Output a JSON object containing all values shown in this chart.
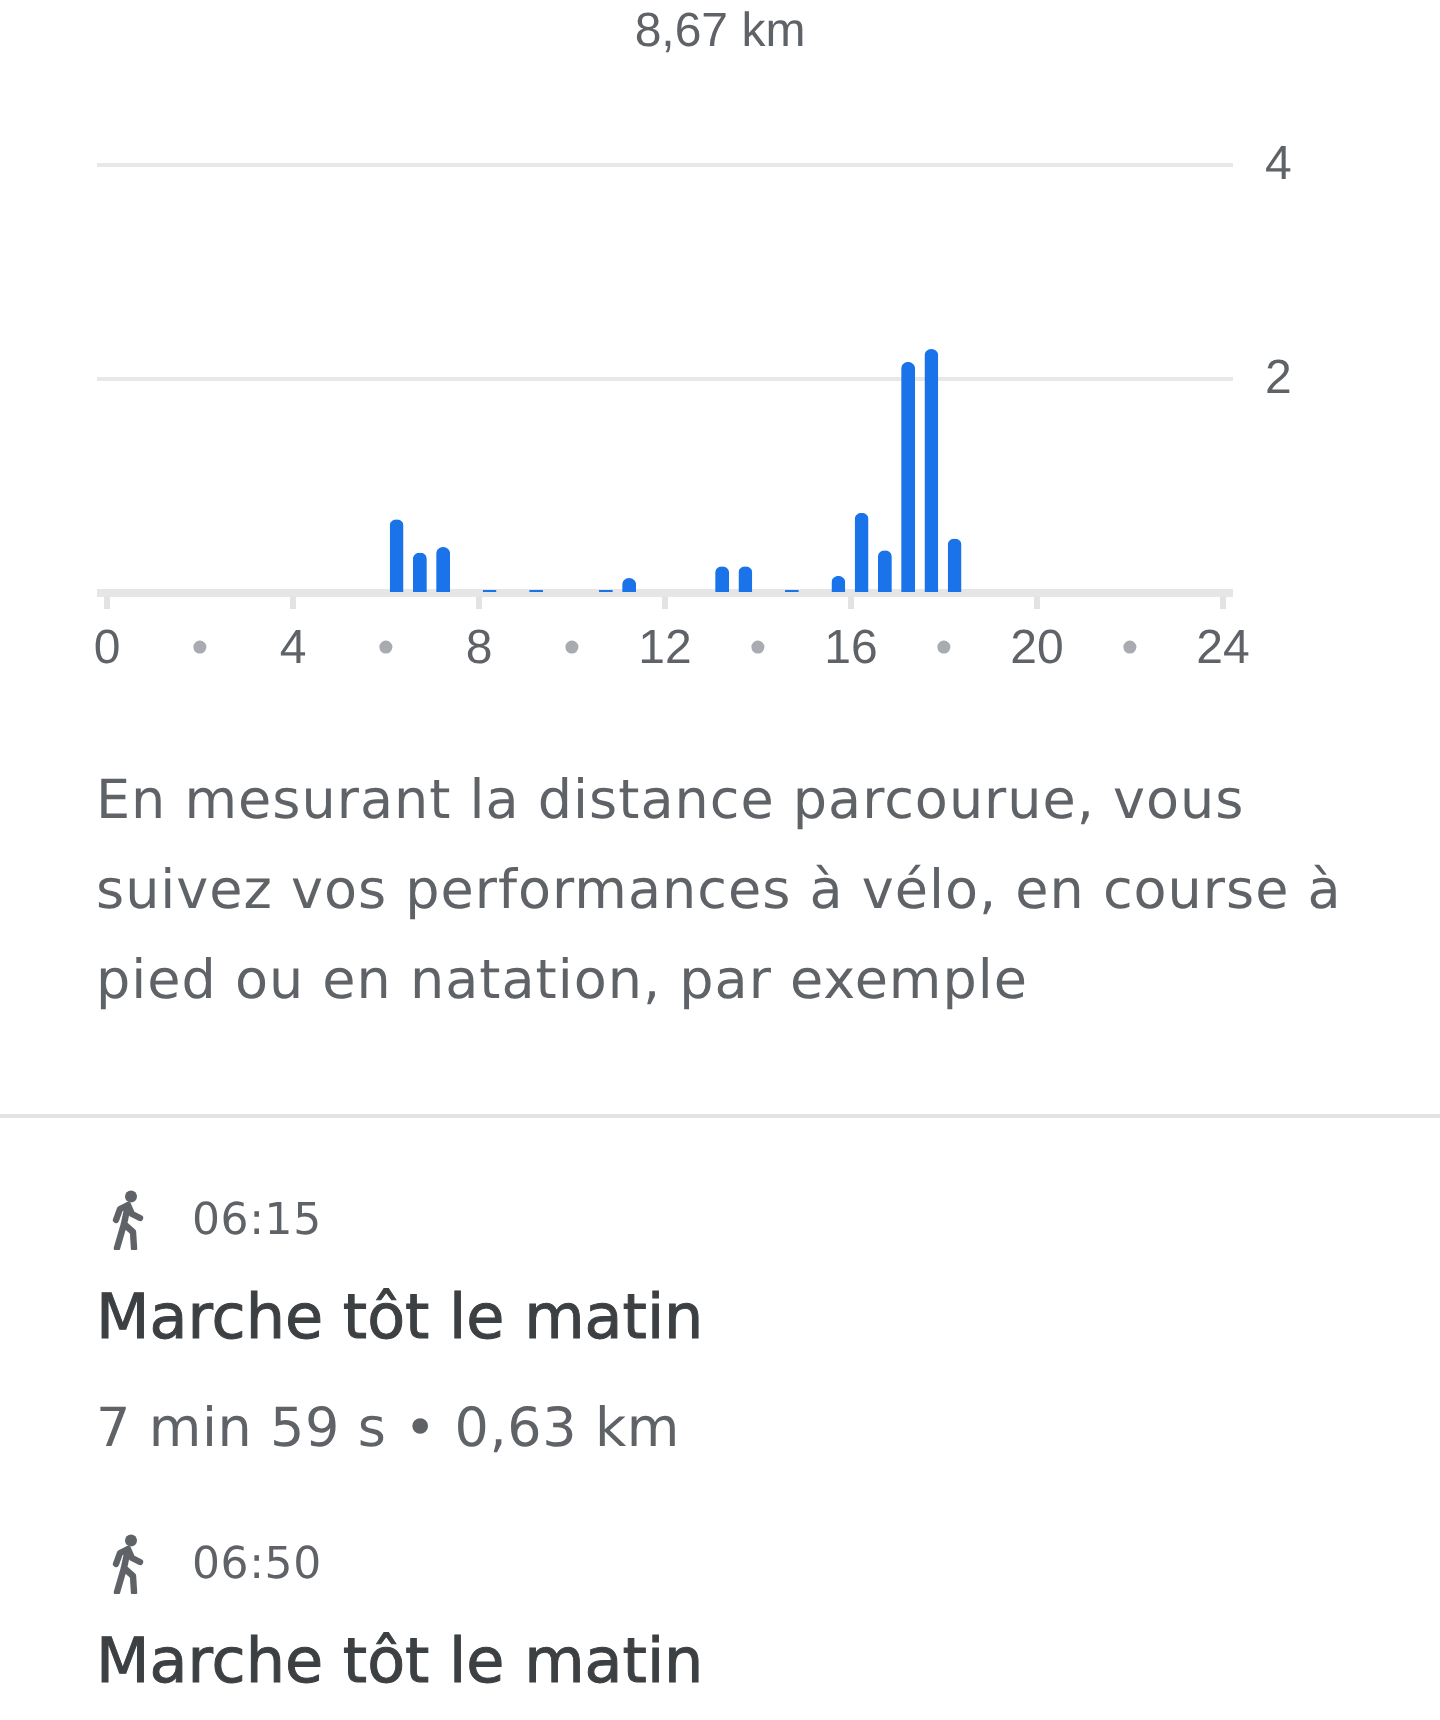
{
  "chart_data": {
    "type": "bar",
    "title": "8,67 km",
    "x": [
      6.25,
      6.75,
      7.25,
      8.25,
      9.25,
      10.75,
      11.25,
      13.25,
      13.75,
      14.75,
      15.75,
      16.25,
      16.75,
      17.25,
      17.75,
      18.25
    ],
    "values": [
      0.68,
      0.37,
      0.42,
      0.02,
      0.02,
      0.02,
      0.13,
      0.24,
      0.24,
      0.02,
      0.15,
      0.74,
      0.39,
      2.15,
      2.27,
      0.5
    ],
    "color": "#1a73e8",
    "xlim": [
      0,
      24
    ],
    "xticks": [
      0,
      {
        "value": 2,
        "label": "•"
      },
      4,
      {
        "value": 6,
        "label": "•"
      },
      8,
      {
        "value": 10,
        "label": "•"
      },
      12,
      {
        "value": 14,
        "label": "•"
      },
      16,
      {
        "value": 18,
        "label": "•"
      },
      20,
      {
        "value": 22,
        "label": "•"
      },
      24
    ],
    "ylim": [
      0,
      4
    ],
    "yticks": [
      2,
      4
    ],
    "grid": "y",
    "annotations": [
      "En mesurant la distance parcourue, vous suivez vos performances à vélo, en course à pied ou en natation, par exemple",
      "06:15",
      "Marche tôt le matin",
      "7 min 59 s • 0,63 km",
      "06:50",
      "Marche tôt le matin"
    ]
  }
}
